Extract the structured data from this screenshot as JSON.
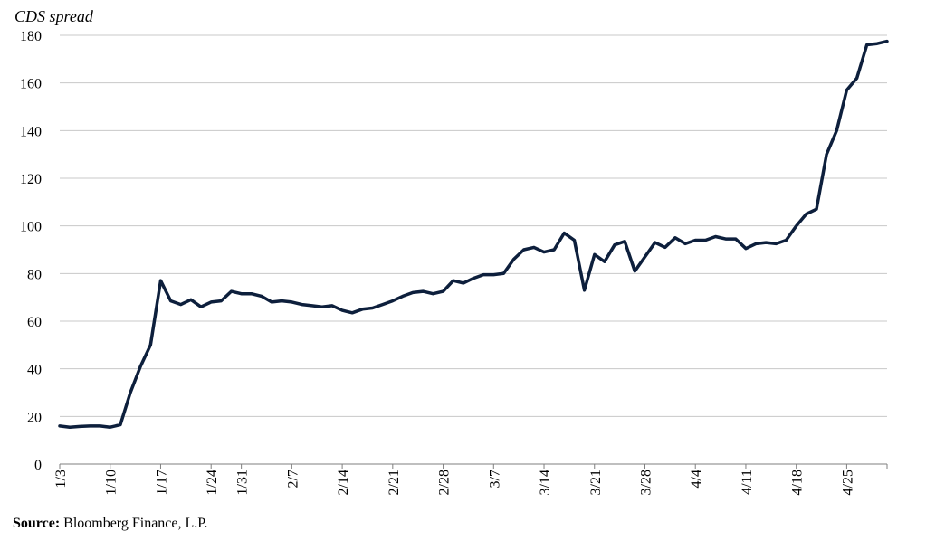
{
  "chart_data": {
    "type": "line",
    "ylabel": "CDS spread",
    "ylim": [
      0,
      180
    ],
    "yticks": [
      0,
      20,
      40,
      60,
      80,
      100,
      120,
      140,
      160,
      180
    ],
    "grid": "horizontal",
    "line_color": "#0d1f3c",
    "xtick_labels": [
      "1/3",
      "1/10",
      "1/17",
      "1/24",
      "1/31",
      "2/7",
      "2/14",
      "2/21",
      "2/28",
      "3/7",
      "3/14",
      "3/21",
      "3/28",
      "4/4",
      "4/11",
      "4/18",
      "4/25"
    ],
    "series": [
      {
        "x": [
          "1/3",
          "1/4",
          "1/5",
          "1/6",
          "1/9",
          "1/10",
          "1/11",
          "1/12",
          "1/13",
          "1/16",
          "1/17",
          "1/18",
          "1/19",
          "1/20",
          "1/23",
          "1/24",
          "1/25",
          "1/30",
          "1/31",
          "2/1",
          "2/2",
          "2/3",
          "2/6",
          "2/7",
          "2/8",
          "2/9",
          "2/10",
          "2/13",
          "2/14",
          "2/15",
          "2/16",
          "2/17",
          "2/20",
          "2/21",
          "2/22",
          "2/23",
          "2/24",
          "2/27",
          "2/28",
          "3/1",
          "3/2",
          "3/3",
          "3/6",
          "3/7",
          "3/8",
          "3/9",
          "3/10",
          "3/13",
          "3/14",
          "3/15",
          "3/16",
          "3/17",
          "3/20",
          "3/21",
          "3/22",
          "3/23",
          "3/24",
          "3/27",
          "3/28",
          "3/29",
          "3/30",
          "3/31",
          "4/3",
          "4/4",
          "4/5",
          "4/6",
          "4/7",
          "4/10",
          "4/11",
          "4/12",
          "4/13",
          "4/14",
          "4/17",
          "4/18",
          "4/19",
          "4/20",
          "4/21",
          "4/24",
          "4/25",
          "4/26",
          "4/27",
          "4/28",
          "5/1"
        ],
        "values": [
          16,
          15.5,
          15.8,
          16,
          16,
          15.5,
          16.5,
          30,
          41,
          50,
          77,
          68.5,
          67,
          69,
          66,
          68,
          68.5,
          72.5,
          71.5,
          71.5,
          70.5,
          68,
          68.5,
          68,
          67,
          66.5,
          66,
          66.5,
          64.5,
          63.5,
          65,
          65.5,
          67,
          68.5,
          70.5,
          72,
          72.5,
          71.5,
          72.5,
          77,
          76,
          78,
          79.5,
          79.5,
          80,
          86,
          90,
          91,
          89,
          90,
          97,
          94,
          73,
          88,
          85,
          92,
          93.5,
          81,
          87,
          93,
          91,
          95,
          92.5,
          94,
          94,
          95.5,
          94.5,
          94.5,
          90.5,
          92.5,
          93,
          92.5,
          94,
          100,
          105,
          107,
          130,
          140,
          157,
          162,
          176,
          176.5,
          177.5
        ]
      }
    ]
  },
  "source": {
    "label": "Source:",
    "text": "Bloomberg Finance, L.P."
  }
}
